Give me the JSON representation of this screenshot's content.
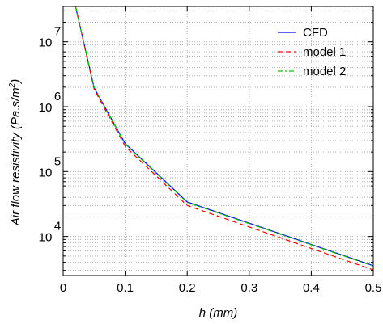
{
  "chart_data": {
    "type": "line",
    "title": "",
    "xlabel": "h (mm)",
    "ylabel_main": "Air flow resistivity (Pa.s/m",
    "ylabel_sup": "2",
    "ylabel_close": ")",
    "xlim": [
      0,
      0.5
    ],
    "ylim": [
      2500,
      35000000
    ],
    "yscale": "log",
    "grid": true,
    "legend_position": "top-right",
    "x_ticks": [
      {
        "value": 0,
        "label": "0"
      },
      {
        "value": 0.1,
        "label": "0.1"
      },
      {
        "value": 0.2,
        "label": "0.2"
      },
      {
        "value": 0.3,
        "label": "0.3"
      },
      {
        "value": 0.4,
        "label": "0.4"
      },
      {
        "value": 0.5,
        "label": "0.5"
      }
    ],
    "y_ticks": [
      {
        "value": 10000,
        "base": "10",
        "exp": "4"
      },
      {
        "value": 100000,
        "base": "10",
        "exp": "5"
      },
      {
        "value": 1000000,
        "base": "10",
        "exp": "6"
      },
      {
        "value": 10000000,
        "base": "10",
        "exp": "7"
      }
    ],
    "series": [
      {
        "name": "CFD",
        "color": "#0000ff",
        "dash": "solid",
        "x": [
          0.02,
          0.05,
          0.1,
          0.2,
          0.5
        ],
        "y": [
          35000000,
          1950000,
          270000,
          34000,
          3550
        ]
      },
      {
        "name": "model 1",
        "color": "#ff0000",
        "dash": "dashed",
        "x": [
          0.02,
          0.05,
          0.1,
          0.2,
          0.5
        ],
        "y": [
          35000000,
          1850000,
          245000,
          30000,
          3050
        ]
      },
      {
        "name": "model 2",
        "color": "#00cc00",
        "dash": "dashdot",
        "x": [
          0.02,
          0.05,
          0.1,
          0.2,
          0.5
        ],
        "y": [
          35000000,
          1950000,
          265000,
          33500,
          3500
        ]
      }
    ]
  }
}
